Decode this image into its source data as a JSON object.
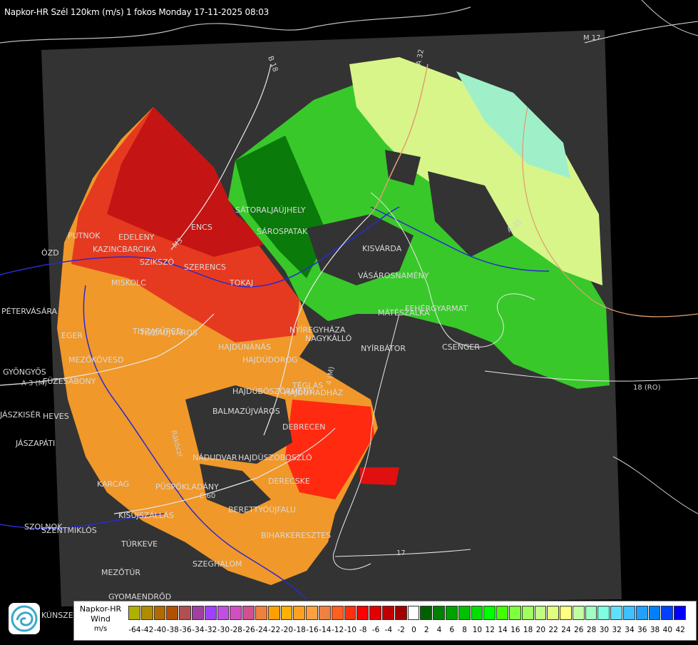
{
  "header": {
    "title": "Napkor-HR Szél 120km (m/s) 1 fokos Monday 17-11-2025 08:03"
  },
  "map": {
    "background_color": "#000000",
    "radar_area_color": "#333333",
    "places": [
      "PUTNOK",
      "EDELENY",
      "KAZINCBARCIKA",
      "SZIKSZÓ",
      "ENCS",
      "SZERENCS",
      "TOKAJ",
      "SÁTORALJAÚJHELY",
      "SÁROSPATAK",
      "KISVÁRDA",
      "VÁSÁROSNAMÉNY",
      "FEHÉRGYARMAT",
      "MÁTÉSZALKA",
      "NYÍREGYHÁZA",
      "NAGYKÁLLÓ",
      "NYÍRBÁTOR",
      "CSENGER",
      "MISKOLC",
      "TISZAÚJVÁROS",
      "HAJDÚNÁNÁS",
      "HAJDÚDOROG",
      "HAJDÚBÖSZÖRMÉNY",
      "HAJDÚHADHÁZ",
      "TÉGLÁS",
      "BALMAZÚJVÁROS",
      "DEBRECEN",
      "NÁDUDVAR",
      "HAJDÚSZOBOSZLÓ",
      "DERECSKE",
      "KARCAG",
      "PÜSPÖKLADÁNY",
      "BERETTYÓÚJFALU",
      "BIHARKERESZTES",
      "SZEGHALOM",
      "KISÚJSZÁLLÁS",
      "TÚRKEVE",
      "MEZŐTÚR",
      "GYOMAENDRŐD",
      "SZOLNOK",
      "TISZAFÜRED",
      "MEZŐKÖVESD",
      "EGER",
      "GYÖNGYÖS",
      "HEVES",
      "JÁSZAPÁTI",
      "PÉTERVÁSÁRA",
      "ÓZD",
      "FÜZESABONY",
      "SZENTMIKLÓS",
      "KÚNSZENTMÁRTON",
      "JÁSZKISÉR"
    ],
    "roads": [
      "B 18",
      "A 32",
      "M 17",
      "A 3 (M)",
      "M3",
      "A 35",
      "4 (M)",
      "E 60",
      "17",
      "18 (RO)",
      "Rákóczi"
    ]
  },
  "legend": {
    "name_line1": "Napkor-HR",
    "name_line2": "Wind",
    "unit": "m/s",
    "ticks": [
      "-64",
      "-42",
      "-40",
      "-38",
      "-36",
      "-34",
      "-32",
      "-30",
      "-28",
      "-26",
      "-24",
      "-22",
      "-20",
      "-18",
      "-16",
      "-14",
      "-12",
      "-10",
      "-8",
      "-6",
      "-4",
      "-2",
      "0",
      "2",
      "4",
      "6",
      "8",
      "10",
      "12",
      "14",
      "16",
      "18",
      "20",
      "22",
      "24",
      "26",
      "28",
      "30",
      "32",
      "34",
      "36",
      "38",
      "40",
      "42"
    ],
    "colors": [
      "#b0b000",
      "#b08a00",
      "#b06a00",
      "#b05000",
      "#b05050",
      "#a040a0",
      "#a040ff",
      "#c050e0",
      "#d050c0",
      "#d05090",
      "#f08040",
      "#ffa000",
      "#ffb000",
      "#ffa020",
      "#ffa040",
      "#f08040",
      "#ff6020",
      "#ff3010",
      "#ff0000",
      "#e00000",
      "#c00000",
      "#a00000",
      "#ffffff",
      "#006000",
      "#008000",
      "#00a000",
      "#00c000",
      "#00e000",
      "#00ff00",
      "#40ff00",
      "#80ff40",
      "#a0ff60",
      "#c0ff80",
      "#e0ff80",
      "#ffff80",
      "#c0ffa0",
      "#a0ffc0",
      "#80ffe0",
      "#60e0ff",
      "#40c0ff",
      "#20a0ff",
      "#0080ff",
      "#0040ff",
      "#0000ff"
    ]
  }
}
